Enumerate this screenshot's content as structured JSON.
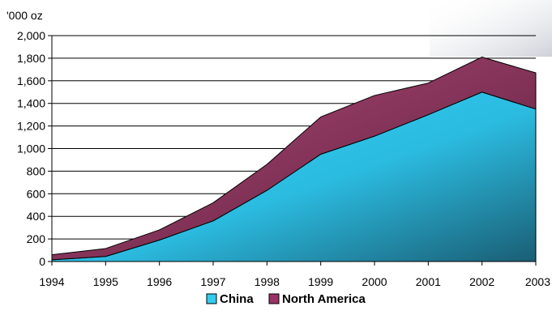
{
  "chart_data": {
    "type": "area",
    "stacked": true,
    "unit_label": "'000 oz",
    "title": "",
    "xlabel": "",
    "ylabel": "",
    "ylim": [
      0,
      2000
    ],
    "yticks": [
      0,
      200,
      400,
      600,
      800,
      1000,
      1200,
      1400,
      1600,
      1800,
      2000
    ],
    "ytick_labels": [
      "0",
      "200",
      "400",
      "600",
      "800",
      "1,000",
      "1,200",
      "1,400",
      "1,600",
      "1,800",
      "2,000"
    ],
    "categories": [
      "1994",
      "1995",
      "1996",
      "1997",
      "1998",
      "1999",
      "2000",
      "2001",
      "2002",
      "2003"
    ],
    "grid": true,
    "legend_position": "bottom",
    "series": [
      {
        "name": "China",
        "color": "#33ccee",
        "values": [
          15,
          45,
          190,
          360,
          630,
          950,
          1110,
          1300,
          1500,
          1350
        ]
      },
      {
        "name": "North America",
        "color": "#993366",
        "values": [
          45,
          70,
          90,
          160,
          230,
          330,
          360,
          280,
          310,
          320
        ]
      }
    ]
  }
}
